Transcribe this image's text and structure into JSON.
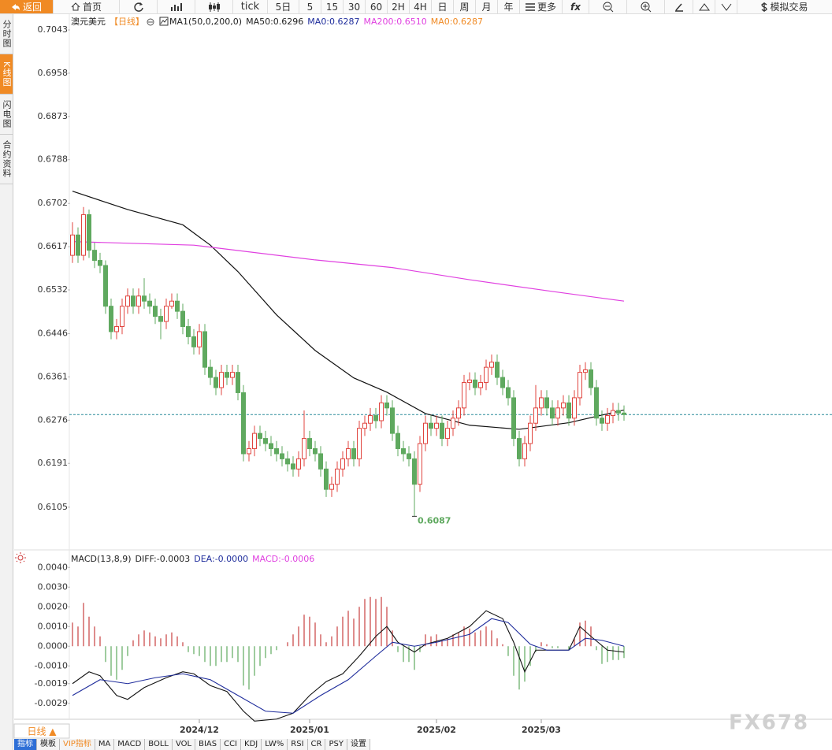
{
  "toolbar": [
    "返回",
    "首页",
    "tick",
    "5日",
    "5",
    "15",
    "30",
    "60",
    "2H",
    "4H",
    "日",
    "周",
    "月",
    "年",
    "更多",
    "fx",
    "模拟交易"
  ],
  "sidebar": [
    "分时图",
    "K线图",
    "闪电图",
    "合约资料"
  ],
  "period_button": "日线 ▲",
  "tabs": [
    "指标",
    "模板",
    "VIP指标",
    "MA",
    "MACD",
    "BOLL",
    "VOL",
    "BIAS",
    "CCI",
    "KDJ",
    "LW%",
    "RSI",
    "CR",
    "PSY",
    "设置"
  ],
  "watermark": "FX678",
  "chart_data": [
    {
      "type": "candlestick",
      "legend": [
        {
          "text": "澳元美元",
          "color": "#222222"
        },
        {
          "text": "【日线】",
          "color": "#f08a24"
        },
        {
          "text": "MA1(50,0,200,0)",
          "color": "#222222"
        },
        {
          "text": "MA50:0.6296",
          "color": "#222222"
        },
        {
          "text": "MA0:0.6287",
          "color": "#1f2d9c"
        },
        {
          "text": "MA200:0.6510",
          "color": "#e040e0"
        },
        {
          "text": "MA0:0.6287",
          "color": "#f08a24"
        }
      ],
      "ylim": [
        0.6021,
        0.7074
      ],
      "yticks": [
        0.7043,
        0.6958,
        0.6873,
        0.6788,
        0.6702,
        0.6617,
        0.6532,
        0.6446,
        0.6361,
        0.6276,
        0.6191,
        0.6105
      ],
      "xticks": [
        {
          "value": 23,
          "label": "2024/12"
        },
        {
          "value": 43,
          "label": "2025/01"
        },
        {
          "value": 66,
          "label": "2025/02"
        },
        {
          "value": 85,
          "label": "2025/03"
        }
      ],
      "up_color": "#e0453f",
      "down_color": "#5fa95f",
      "price_line": {
        "value": 0.6287,
        "color": "#2a8a9a"
      },
      "low_annotation": 0.6087,
      "ohlc": [
        [
          0.66,
          0.6665,
          0.6585,
          0.664
        ],
        [
          0.664,
          0.6655,
          0.6585,
          0.66
        ],
        [
          0.66,
          0.6695,
          0.659,
          0.668
        ],
        [
          0.668,
          0.669,
          0.6595,
          0.661
        ],
        [
          0.661,
          0.6625,
          0.6575,
          0.659
        ],
        [
          0.659,
          0.6605,
          0.6565,
          0.658
        ],
        [
          0.658,
          0.659,
          0.6485,
          0.65
        ],
        [
          0.65,
          0.6515,
          0.6435,
          0.645
        ],
        [
          0.645,
          0.6475,
          0.6435,
          0.646
        ],
        [
          0.646,
          0.6515,
          0.6445,
          0.65
        ],
        [
          0.65,
          0.6535,
          0.6485,
          0.652
        ],
        [
          0.652,
          0.6535,
          0.6485,
          0.65
        ],
        [
          0.65,
          0.6535,
          0.6485,
          0.652
        ],
        [
          0.652,
          0.6555,
          0.6495,
          0.651
        ],
        [
          0.651,
          0.6525,
          0.6485,
          0.65
        ],
        [
          0.65,
          0.6515,
          0.6465,
          0.648
        ],
        [
          0.648,
          0.6495,
          0.6435,
          0.647
        ],
        [
          0.647,
          0.6515,
          0.6455,
          0.65
        ],
        [
          0.65,
          0.6525,
          0.6495,
          0.651
        ],
        [
          0.651,
          0.6525,
          0.6475,
          0.649
        ],
        [
          0.649,
          0.6505,
          0.6445,
          0.646
        ],
        [
          0.646,
          0.6475,
          0.6425,
          0.644
        ],
        [
          0.644,
          0.6455,
          0.6405,
          0.642
        ],
        [
          0.642,
          0.6465,
          0.6405,
          0.645
        ],
        [
          0.645,
          0.6465,
          0.6365,
          0.638
        ],
        [
          0.638,
          0.6395,
          0.6345,
          0.636
        ],
        [
          0.636,
          0.6375,
          0.6325,
          0.634
        ],
        [
          0.634,
          0.6385,
          0.6325,
          0.637
        ],
        [
          0.637,
          0.6385,
          0.6345,
          0.636
        ],
        [
          0.636,
          0.6385,
          0.6345,
          0.637
        ],
        [
          0.637,
          0.6385,
          0.6315,
          0.633
        ],
        [
          0.633,
          0.6345,
          0.6195,
          0.621
        ],
        [
          0.621,
          0.6235,
          0.6195,
          0.622
        ],
        [
          0.622,
          0.6265,
          0.6205,
          0.625
        ],
        [
          0.625,
          0.6265,
          0.6225,
          0.624
        ],
        [
          0.624,
          0.6255,
          0.6215,
          0.623
        ],
        [
          0.623,
          0.6245,
          0.6205,
          0.622
        ],
        [
          0.622,
          0.6235,
          0.6195,
          0.621
        ],
        [
          0.621,
          0.6225,
          0.6185,
          0.62
        ],
        [
          0.62,
          0.6215,
          0.6175,
          0.619
        ],
        [
          0.619,
          0.6205,
          0.6165,
          0.618
        ],
        [
          0.618,
          0.6215,
          0.6165,
          0.62
        ],
        [
          0.62,
          0.6295,
          0.6185,
          0.624
        ],
        [
          0.624,
          0.6255,
          0.6205,
          0.622
        ],
        [
          0.622,
          0.6235,
          0.6195,
          0.621
        ],
        [
          0.621,
          0.6225,
          0.6165,
          0.618
        ],
        [
          0.618,
          0.6195,
          0.6125,
          0.614
        ],
        [
          0.614,
          0.6165,
          0.6125,
          0.615
        ],
        [
          0.615,
          0.6195,
          0.6135,
          0.618
        ],
        [
          0.618,
          0.6215,
          0.6165,
          0.62
        ],
        [
          0.62,
          0.6235,
          0.6185,
          0.622
        ],
        [
          0.622,
          0.6235,
          0.6185,
          0.62
        ],
        [
          0.62,
          0.6275,
          0.6185,
          0.626
        ],
        [
          0.626,
          0.6285,
          0.6245,
          0.627
        ],
        [
          0.627,
          0.63,
          0.6255,
          0.6285
        ],
        [
          0.6285,
          0.63,
          0.626,
          0.6275
        ],
        [
          0.6275,
          0.6325,
          0.626,
          0.631
        ],
        [
          0.631,
          0.6325,
          0.6285,
          0.63
        ],
        [
          0.63,
          0.6315,
          0.6235,
          0.625
        ],
        [
          0.625,
          0.6265,
          0.6205,
          0.622
        ],
        [
          0.622,
          0.6235,
          0.6195,
          0.621
        ],
        [
          0.621,
          0.6225,
          0.6185,
          0.62
        ],
        [
          0.62,
          0.6215,
          0.6087,
          0.615
        ],
        [
          0.615,
          0.6245,
          0.6135,
          0.623
        ],
        [
          0.623,
          0.6285,
          0.6215,
          0.627
        ],
        [
          0.627,
          0.6285,
          0.6245,
          0.626
        ],
        [
          0.626,
          0.6285,
          0.6245,
          0.627
        ],
        [
          0.627,
          0.6285,
          0.6225,
          0.624
        ],
        [
          0.624,
          0.6275,
          0.6225,
          0.626
        ],
        [
          0.626,
          0.6295,
          0.6245,
          0.628
        ],
        [
          0.628,
          0.6315,
          0.6265,
          0.63
        ],
        [
          0.63,
          0.6365,
          0.6285,
          0.635
        ],
        [
          0.635,
          0.637,
          0.6335,
          0.6355
        ],
        [
          0.6355,
          0.637,
          0.6325,
          0.634
        ],
        [
          0.634,
          0.6365,
          0.6325,
          0.635
        ],
        [
          0.635,
          0.6395,
          0.6335,
          0.638
        ],
        [
          0.638,
          0.6405,
          0.6365,
          0.639
        ],
        [
          0.639,
          0.6405,
          0.6345,
          0.636
        ],
        [
          0.636,
          0.6375,
          0.6325,
          0.634
        ],
        [
          0.634,
          0.6355,
          0.6305,
          0.632
        ],
        [
          0.632,
          0.6335,
          0.6225,
          0.624
        ],
        [
          0.624,
          0.6255,
          0.6185,
          0.62
        ],
        [
          0.62,
          0.6245,
          0.6185,
          0.623
        ],
        [
          0.623,
          0.6285,
          0.6215,
          0.627
        ],
        [
          0.627,
          0.6345,
          0.6255,
          0.63
        ],
        [
          0.63,
          0.6335,
          0.6285,
          0.632
        ],
        [
          0.632,
          0.6335,
          0.6285,
          0.63
        ],
        [
          0.63,
          0.6315,
          0.6265,
          0.628
        ],
        [
          0.628,
          0.6315,
          0.6265,
          0.63
        ],
        [
          0.63,
          0.6325,
          0.6285,
          0.631
        ],
        [
          0.631,
          0.6325,
          0.6265,
          0.628
        ],
        [
          0.628,
          0.6335,
          0.6265,
          0.632
        ],
        [
          0.632,
          0.6385,
          0.6305,
          0.637
        ],
        [
          0.637,
          0.639,
          0.6355,
          0.6375
        ],
        [
          0.6375,
          0.639,
          0.6325,
          0.634
        ],
        [
          0.634,
          0.6355,
          0.6265,
          0.628
        ],
        [
          0.628,
          0.6295,
          0.6255,
          0.627
        ],
        [
          0.627,
          0.63,
          0.6255,
          0.6285
        ],
        [
          0.6285,
          0.631,
          0.627,
          0.6295
        ],
        [
          0.6295,
          0.631,
          0.6275,
          0.629
        ],
        [
          0.629,
          0.6305,
          0.6275,
          0.6287
        ]
      ],
      "series": [
        {
          "name": "MA50",
          "color": "#111111",
          "x": [
            0,
            10,
            20,
            25,
            30,
            37,
            44,
            51,
            57,
            64,
            72,
            81,
            90,
            100
          ],
          "values": [
            0.6726,
            0.669,
            0.666,
            0.662,
            0.6568,
            0.6483,
            0.6413,
            0.6359,
            0.6331,
            0.6289,
            0.6266,
            0.6258,
            0.6271,
            0.6296
          ]
        },
        {
          "name": "MA200",
          "color": "#e040e0",
          "x": [
            0,
            22,
            44,
            58,
            72,
            87,
            100
          ],
          "values": [
            0.6627,
            0.662,
            0.6591,
            0.6576,
            0.6552,
            0.6529,
            0.651
          ]
        }
      ]
    },
    {
      "type": "macd",
      "legend": [
        {
          "text": "MACD(13,8,9)",
          "color": "#222222"
        },
        {
          "text": "DIFF:-0.0003",
          "color": "#222222"
        },
        {
          "text": "DEA:-0.0000",
          "color": "#1f2d9c"
        },
        {
          "text": "MACD:-0.0006",
          "color": "#e040e0"
        }
      ],
      "ylim": [
        -0.00367,
        0.00489
      ],
      "yticks": [
        {
          "value": 0.004,
          "label": "0.0040"
        },
        {
          "value": 0.003,
          "label": "0.0030"
        },
        {
          "value": 0.002,
          "label": "0.0020"
        },
        {
          "value": 0.001,
          "label": "0.0010"
        },
        {
          "value": 0,
          "label": "0.0000"
        },
        {
          "value": -0.001,
          "label": "-0.0010"
        },
        {
          "value": -0.0019,
          "label": "-0.0019"
        },
        {
          "value": -0.0029,
          "label": "-0.0029"
        }
      ],
      "up_color": "#c84040",
      "down_color": "#5fa95f",
      "histogram": [
        0.0012,
        0.001,
        0.0022,
        0.0015,
        0.001,
        0.0005,
        -0.0008,
        -0.0015,
        -0.0017,
        -0.0012,
        -0.0005,
        0.0003,
        0.0006,
        0.0008,
        0.0007,
        0.0005,
        0.0004,
        0.0006,
        0.0007,
        0.0005,
        0.0002,
        -0.0003,
        -0.0004,
        -0.0005,
        -0.0008,
        -0.001,
        -0.001,
        -0.0008,
        -0.0008,
        -0.0006,
        -0.0008,
        -0.002,
        -0.0022,
        -0.0015,
        -0.001,
        -0.0006,
        -0.0004,
        -0.0002,
        0,
        0.0002,
        0.0006,
        0.001,
        0.0016,
        0.0015,
        0.0012,
        0.0006,
        0.0002,
        0.0005,
        0.001,
        0.0015,
        0.0018,
        0.0014,
        0.002,
        0.0024,
        0.0025,
        0.0024,
        0.0025,
        0.002,
        0.0008,
        -0.0003,
        -0.0008,
        -0.0008,
        -0.0012,
        -0.0003,
        0.0006,
        0.0005,
        0.0006,
        0.0003,
        0.0004,
        0.0006,
        0.0007,
        0.001,
        0.0009,
        0.0007,
        0.0008,
        0.001,
        0.0008,
        0.0004,
        0.0001,
        -0.0005,
        -0.0015,
        -0.0022,
        -0.0018,
        -0.001,
        -0.0003,
        0.0002,
        0.0001,
        -0.0001,
        -0.0001,
        0,
        -0.0002,
        0.0004,
        0.0012,
        0.0013,
        0.001,
        -0.0002,
        -0.0009,
        -0.0008,
        -0.0007,
        -0.0007,
        -0.0006
      ],
      "series": [
        {
          "name": "DIFF",
          "color": "#111111",
          "x": [
            0,
            3,
            5,
            8,
            10,
            13,
            17,
            20,
            22,
            25,
            28,
            31,
            33,
            37,
            40,
            43,
            46,
            49,
            52,
            55,
            57,
            59,
            62,
            64,
            68,
            72,
            75,
            78,
            80,
            82,
            84,
            87,
            90,
            92,
            94,
            97,
            100
          ],
          "values": [
            -0.0019,
            -0.0013,
            -0.0015,
            -0.0025,
            -0.0027,
            -0.0021,
            -0.0016,
            -0.0013,
            -0.0014,
            -0.002,
            -0.0023,
            -0.0033,
            -0.0038,
            -0.0037,
            -0.0034,
            -0.0025,
            -0.0018,
            -0.0014,
            -0.0005,
            0.0005,
            0.001,
            0.0002,
            -0.0003,
            0.0001,
            0.0004,
            0.001,
            0.0018,
            0.0014,
            0.0002,
            -0.0013,
            -0.0002,
            -0.0002,
            -0.0002,
            0.001,
            0.0005,
            -0.0002,
            -0.0003
          ]
        },
        {
          "name": "DEA",
          "color": "#1f2d9c",
          "x": [
            0,
            5,
            10,
            15,
            20,
            25,
            30,
            35,
            40,
            45,
            50,
            55,
            58,
            62,
            66,
            72,
            76,
            79,
            83,
            86,
            90,
            93,
            96,
            100
          ],
          "values": [
            -0.0025,
            -0.0017,
            -0.0019,
            -0.0016,
            -0.0014,
            -0.0017,
            -0.0025,
            -0.0033,
            -0.0034,
            -0.0025,
            -0.0017,
            -0.0005,
            0.0002,
            0,
            0.0002,
            0.0006,
            0.0014,
            0.0012,
            0.0001,
            -0.0002,
            -0.0002,
            0.0004,
            0.0003,
            0
          ]
        }
      ]
    }
  ]
}
